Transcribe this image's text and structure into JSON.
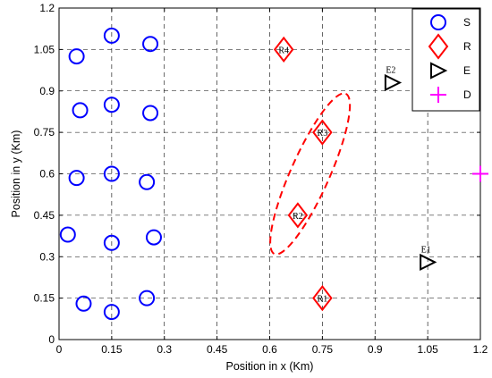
{
  "chart_data": {
    "type": "scatter",
    "xlabel": "Position in x (Km)",
    "ylabel": "Position in y (Km)",
    "xlim": [
      0,
      1.2
    ],
    "ylim": [
      0,
      1.2
    ],
    "xticks": [
      "0",
      "0.15",
      "0.3",
      "0.45",
      "0.6",
      "0.75",
      "0.9",
      "1.05",
      "1.2"
    ],
    "yticks": [
      "0",
      "0.15",
      "0.3",
      "0.45",
      "0.6",
      "0.75",
      "0.9",
      "1.05",
      "1.2"
    ],
    "grid": true,
    "legend_position": "top-right",
    "series": [
      {
        "name": "S",
        "marker": "circle",
        "color": "#0000ff",
        "points": [
          [
            0.05,
            1.025
          ],
          [
            0.15,
            1.1
          ],
          [
            0.26,
            1.07
          ],
          [
            0.06,
            0.83
          ],
          [
            0.15,
            0.85
          ],
          [
            0.26,
            0.82
          ],
          [
            0.05,
            0.585
          ],
          [
            0.15,
            0.6
          ],
          [
            0.25,
            0.57
          ],
          [
            0.025,
            0.38
          ],
          [
            0.15,
            0.35
          ],
          [
            0.27,
            0.37
          ],
          [
            0.07,
            0.13
          ],
          [
            0.15,
            0.1
          ],
          [
            0.25,
            0.15
          ]
        ]
      },
      {
        "name": "R",
        "marker": "diamond",
        "color": "#ff0000",
        "points": [
          [
            0.64,
            1.05
          ],
          [
            0.75,
            0.75
          ],
          [
            0.68,
            0.45
          ],
          [
            0.75,
            0.15
          ]
        ],
        "labels": [
          "R4",
          "R3",
          "R2",
          "R1"
        ]
      },
      {
        "name": "E",
        "marker": "triangle-right",
        "color": "#000000",
        "points": [
          [
            0.95,
            0.93
          ],
          [
            1.05,
            0.28
          ]
        ],
        "labels": [
          "E2",
          "E1"
        ]
      },
      {
        "name": "D",
        "marker": "plus",
        "color": "#ff00ff",
        "points": [
          [
            1.2,
            0.6
          ]
        ]
      }
    ],
    "ellipse": {
      "color": "#ff0000",
      "style": "dashed",
      "center": [
        0.715,
        0.6
      ],
      "semi_major": 0.25,
      "semi_minor": 0.055,
      "angle_deg": 66
    }
  }
}
